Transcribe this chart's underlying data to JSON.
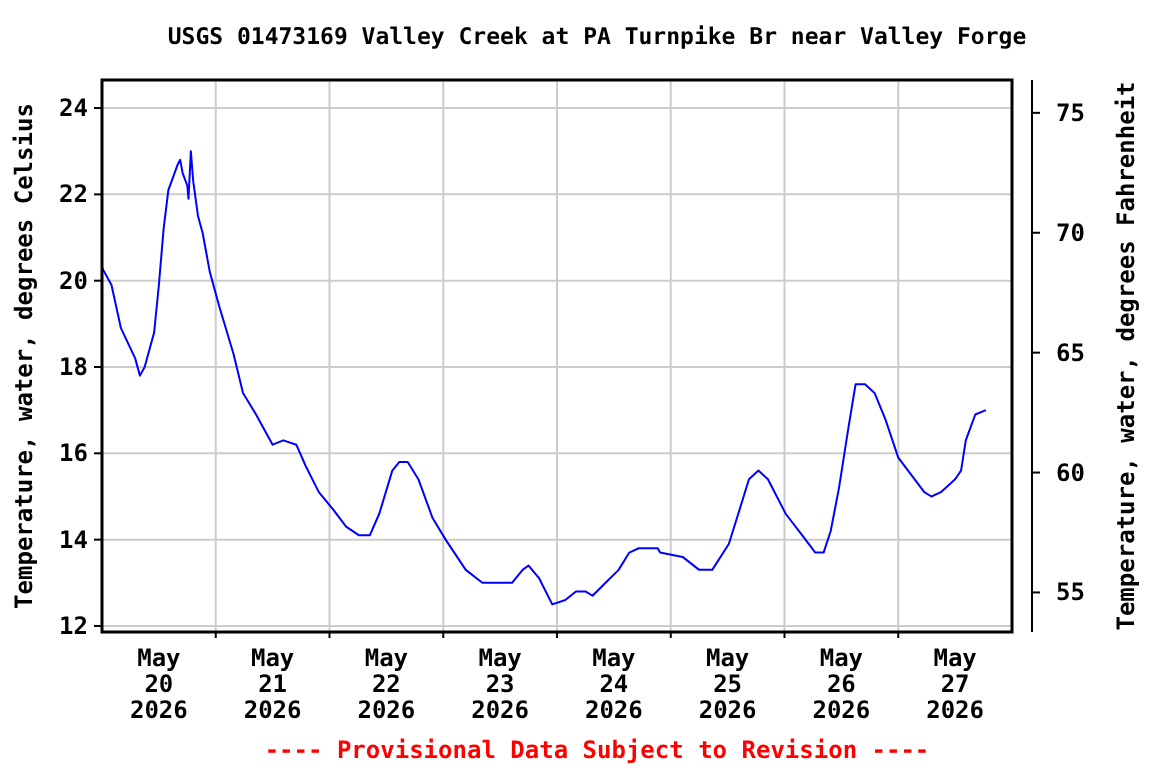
{
  "chart_data": {
    "type": "line",
    "title": "USGS 01473169 Valley Creek at PA Turnpike Br near Valley Forge",
    "ylabel": "Temperature, water, degrees Celsius",
    "y2label": "Temperature, water, degrees Fahrenheit",
    "annotations": [
      "---- Provisional Data Subject to Revision ----"
    ],
    "xlim": [
      "2026-05-20T00:00",
      "2026-05-28T00:00"
    ],
    "xticks": [
      {
        "value": "2026-05-20T12:00",
        "label": "May 20 2026"
      },
      {
        "value": "2026-05-21T12:00",
        "label": "May 21 2026"
      },
      {
        "value": "2026-05-22T12:00",
        "label": "May 22 2026"
      },
      {
        "value": "2026-05-23T12:00",
        "label": "May 23 2026"
      },
      {
        "value": "2026-05-24T12:00",
        "label": "May 24 2026"
      },
      {
        "value": "2026-05-25T12:00",
        "label": "May 25 2026"
      },
      {
        "value": "2026-05-26T12:00",
        "label": "May 26 2026"
      },
      {
        "value": "2026-05-27T12:00",
        "label": "May 27 2026"
      },
      {
        "value": "2026-05-21T00:00",
        "label": null
      },
      {
        "value": "2026-05-22T00:00",
        "label": null
      },
      {
        "value": "2026-05-23T00:00",
        "label": null
      },
      {
        "value": "2026-05-24T00:00",
        "label": null
      },
      {
        "value": "2026-05-25T00:00",
        "label": null
      },
      {
        "value": "2026-05-26T00:00",
        "label": null
      },
      {
        "value": "2026-05-27T00:00",
        "label": null
      }
    ],
    "ylim": [
      11.86,
      24.65
    ],
    "yticks": [
      12,
      14,
      16,
      18,
      20,
      22,
      24
    ],
    "y2lim": [
      53.35,
      76.37
    ],
    "y2ticks": [
      55,
      60,
      65,
      70,
      75
    ],
    "grid": true,
    "marker": "none",
    "line_style": "solid",
    "x": [
      "2026-05-20T00:00",
      "2026-05-20T02:00",
      "2026-05-20T04:00",
      "2026-05-20T07:00",
      "2026-05-20T08:00",
      "2026-05-20T09:00",
      "2026-05-20T11:00",
      "2026-05-20T12:00",
      "2026-05-20T13:00",
      "2026-05-20T14:00",
      "2026-05-20T16:00",
      "2026-05-20T16:30",
      "2026-05-20T17:00",
      "2026-05-20T18:00",
      "2026-05-20T18:15",
      "2026-05-20T18:45",
      "2026-05-20T19:15",
      "2026-05-20T20:15",
      "2026-05-20T21:15",
      "2026-05-20T22:45",
      "2026-05-21T00:45",
      "2026-05-21T03:45",
      "2026-05-21T05:45",
      "2026-05-21T08:30",
      "2026-05-21T12:00",
      "2026-05-21T14:15",
      "2026-05-21T17:00",
      "2026-05-21T19:00",
      "2026-05-21T21:45",
      "2026-05-22T00:45",
      "2026-05-22T03:30",
      "2026-05-22T06:15",
      "2026-05-22T08:30",
      "2026-05-22T10:30",
      "2026-05-22T13:15",
      "2026-05-22T14:45",
      "2026-05-22T16:30",
      "2026-05-22T18:45",
      "2026-05-22T21:45",
      "2026-05-23T00:30",
      "2026-05-23T04:45",
      "2026-05-23T08:15",
      "2026-05-23T14:30",
      "2026-05-23T16:45",
      "2026-05-23T18:00",
      "2026-05-23T20:15",
      "2026-05-23T23:00",
      "2026-05-24T01:45",
      "2026-05-24T04:00",
      "2026-05-24T06:00",
      "2026-05-24T07:30",
      "2026-05-24T10:15",
      "2026-05-24T13:00",
      "2026-05-24T15:15",
      "2026-05-24T17:15",
      "2026-05-24T21:15",
      "2026-05-24T21:45",
      "2026-05-25T02:30",
      "2026-05-25T06:00",
      "2026-05-25T08:45",
      "2026-05-25T12:15",
      "2026-05-25T14:15",
      "2026-05-25T16:30",
      "2026-05-25T18:30",
      "2026-05-25T20:30",
      "2026-05-26T00:15",
      "2026-05-26T03:45",
      "2026-05-26T06:30",
      "2026-05-26T08:15",
      "2026-05-26T09:45",
      "2026-05-26T11:30",
      "2026-05-26T13:30",
      "2026-05-26T15:00",
      "2026-05-26T17:00",
      "2026-05-26T19:00",
      "2026-05-26T21:15",
      "2026-05-27T00:00",
      "2026-05-27T02:45",
      "2026-05-27T05:30",
      "2026-05-27T07:00",
      "2026-05-27T09:00",
      "2026-05-27T12:00",
      "2026-05-27T13:15",
      "2026-05-27T14:15",
      "2026-05-27T16:15",
      "2026-05-27T18:30"
    ],
    "series": [
      {
        "color": "#0000ff",
        "values": [
          20.3,
          19.9,
          18.9,
          18.2,
          17.8,
          18.0,
          18.8,
          19.9,
          21.2,
          22.1,
          22.7,
          22.8,
          22.5,
          22.2,
          21.9,
          23.0,
          22.3,
          21.5,
          21.1,
          20.2,
          19.4,
          18.3,
          17.4,
          16.9,
          16.2,
          16.3,
          16.2,
          15.7,
          15.1,
          14.7,
          14.3,
          14.1,
          14.1,
          14.6,
          15.6,
          15.8,
          15.8,
          15.4,
          14.5,
          14.0,
          13.3,
          13.0,
          13.0,
          13.3,
          13.4,
          13.1,
          12.5,
          12.6,
          12.8,
          12.8,
          12.7,
          13.0,
          13.3,
          13.7,
          13.8,
          13.8,
          13.7,
          13.6,
          13.3,
          13.3,
          13.9,
          14.6,
          15.4,
          15.6,
          15.4,
          14.6,
          14.1,
          13.7,
          13.7,
          14.2,
          15.2,
          16.6,
          17.6,
          17.6,
          17.4,
          16.8,
          15.9,
          15.5,
          15.1,
          15.0,
          15.1,
          15.4,
          15.6,
          16.3,
          16.9,
          17.0
        ]
      }
    ]
  }
}
